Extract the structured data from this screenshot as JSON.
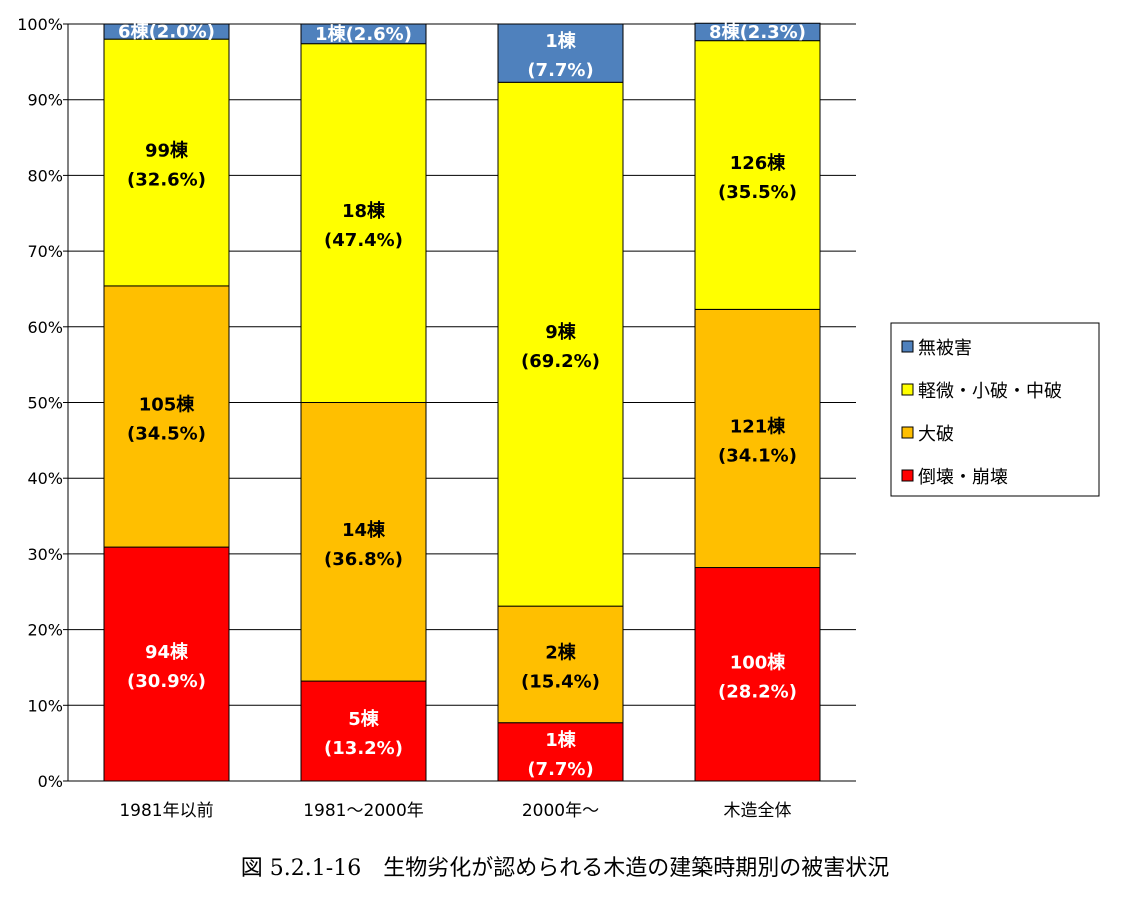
{
  "chart_data": {
    "type": "bar",
    "stacked": true,
    "percent": true,
    "categories": [
      "1981年以前",
      "1981～2000年",
      "2000年～",
      "木造全体"
    ],
    "series": [
      {
        "name": "倒壊・崩壊",
        "color": "#ff0000",
        "text_color": "#ffffff",
        "values": [
          30.9,
          13.2,
          7.7,
          28.2
        ],
        "counts": [
          "94棟",
          "5棟",
          "1棟",
          "100棟"
        ],
        "labels": [
          "(30.9%)",
          "(13.2%)",
          "(7.7%)",
          "(28.2%)"
        ]
      },
      {
        "name": "大破",
        "color": "#ffbf00",
        "text_color": "#000000",
        "values": [
          34.5,
          36.8,
          15.4,
          34.1
        ],
        "counts": [
          "105棟",
          "14棟",
          "2棟",
          "121棟"
        ],
        "labels": [
          "(34.5%)",
          "(36.8%)",
          "(15.4%)",
          "(34.1%)"
        ]
      },
      {
        "name": "軽微・小破・中破",
        "color": "#ffff00",
        "text_color": "#000000",
        "values": [
          32.6,
          47.4,
          69.2,
          35.5
        ],
        "counts": [
          "99棟",
          "18棟",
          "9棟",
          "126棟"
        ],
        "labels": [
          "(32.6%)",
          "(47.4%)",
          "(69.2%)",
          "(35.5%)"
        ]
      },
      {
        "name": "無被害",
        "color": "#4f81bd",
        "text_color": "#ffffff",
        "values": [
          2.0,
          2.6,
          7.7,
          2.3
        ],
        "counts": [
          "6棟",
          "1棟",
          "1棟",
          "8棟"
        ],
        "labels": [
          "(2.0%)",
          "(2.6%)",
          "(7.7%)",
          "(2.3%)"
        ]
      }
    ],
    "ylim": [
      0,
      100
    ],
    "yticks": [
      "0%",
      "10%",
      "20%",
      "30%",
      "40%",
      "50%",
      "60%",
      "70%",
      "80%",
      "90%",
      "100%"
    ],
    "grid": true,
    "legend_position": "right",
    "legend_order": [
      "無被害",
      "軽微・小破・中破",
      "大破",
      "倒壊・崩壊"
    ],
    "title": ""
  },
  "caption": "図 5.2.1-16　生物劣化が認められる木造の建築時期別の被害状況"
}
